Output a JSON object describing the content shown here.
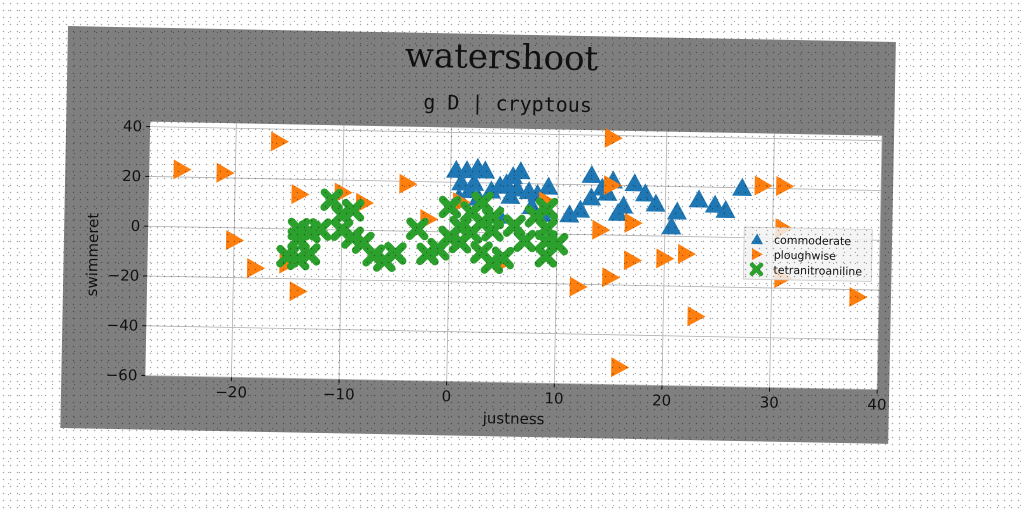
{
  "chart_data": {
    "type": "scatter",
    "title": "watershoot",
    "subtitle": "g D | cryptous",
    "xlabel": "justness",
    "ylabel": "swimmeret",
    "xlim": [
      -28,
      40
    ],
    "ylim": [
      -60,
      42
    ],
    "xticks": [
      "−20",
      "−10",
      "0",
      "10",
      "20",
      "30",
      "40"
    ],
    "yticks": [
      "−60",
      "−40",
      "−20",
      "0",
      "20",
      "40"
    ],
    "grid": true,
    "legend_position": "center-right",
    "colors": {
      "commoderate": "#1f77b4",
      "ploughwise": "#ff7f0e",
      "tetranitroaniline": "#2ca02c",
      "frame": "#7f7f7f"
    },
    "series": [
      {
        "name": "commoderate",
        "marker": "triangle-up",
        "points": [
          [
            0.5,
            25
          ],
          [
            1.5,
            25
          ],
          [
            2.5,
            26
          ],
          [
            3.2,
            25
          ],
          [
            1,
            20
          ],
          [
            2.2,
            20
          ],
          [
            1.8,
            17
          ],
          [
            3.8,
            17
          ],
          [
            0.8,
            14
          ],
          [
            2.6,
            14
          ],
          [
            4.6,
            19
          ],
          [
            5.8,
            23
          ],
          [
            6.5,
            25
          ],
          [
            5.2,
            20
          ],
          [
            6.2,
            18
          ],
          [
            7.3,
            17
          ],
          [
            8.1,
            16
          ],
          [
            9.1,
            19
          ],
          [
            5.6,
            15
          ],
          [
            4.6,
            7
          ],
          [
            7.6,
            11
          ],
          [
            8.6,
            8
          ],
          [
            11.1,
            8
          ],
          [
            12.1,
            10
          ],
          [
            13.1,
            15
          ],
          [
            14.1,
            19
          ],
          [
            15.1,
            22
          ],
          [
            13.1,
            24
          ],
          [
            14.6,
            17
          ],
          [
            16.1,
            12
          ],
          [
            17.1,
            21
          ],
          [
            18.1,
            17
          ],
          [
            19.1,
            13
          ],
          [
            21.1,
            10
          ],
          [
            23.1,
            15
          ],
          [
            24.6,
            13
          ],
          [
            25.6,
            11
          ],
          [
            27.1,
            20
          ],
          [
            15.6,
            9
          ],
          [
            20.6,
            4
          ]
        ]
      },
      {
        "name": "ploughwise",
        "marker": "triangle-right",
        "points": [
          [
            -25,
            23
          ],
          [
            -21,
            22
          ],
          [
            -16,
            35
          ],
          [
            -14,
            14
          ],
          [
            -10,
            15
          ],
          [
            -8,
            11
          ],
          [
            -4,
            19
          ],
          [
            -20,
            -5
          ],
          [
            -18,
            -16
          ],
          [
            -15,
            -14
          ],
          [
            -14,
            -25
          ],
          [
            -2,
            5
          ],
          [
            1,
            12
          ],
          [
            5,
            -12
          ],
          [
            9,
            13
          ],
          [
            15,
            20
          ],
          [
            14,
            2
          ],
          [
            17,
            5
          ],
          [
            15,
            39
          ],
          [
            12,
            -21
          ],
          [
            15,
            -17
          ],
          [
            17,
            -10
          ],
          [
            20,
            -9
          ],
          [
            22,
            -7
          ],
          [
            23,
            -32
          ],
          [
            29,
            21
          ],
          [
            31,
            21
          ],
          [
            31,
            4
          ],
          [
            31,
            -16
          ],
          [
            38,
            -23
          ],
          [
            16,
            -53
          ]
        ]
      },
      {
        "name": "tetranitroaniline",
        "marker": "x-thick",
        "points": [
          [
            -14,
            0
          ],
          [
            -13,
            -1
          ],
          [
            -12,
            0
          ],
          [
            -14,
            -4
          ],
          [
            -15,
            -11
          ],
          [
            -14,
            -12
          ],
          [
            -13,
            -10
          ],
          [
            -11,
            12
          ],
          [
            -10,
            6
          ],
          [
            -9,
            8
          ],
          [
            -10,
            0
          ],
          [
            -9,
            -3
          ],
          [
            -8,
            -5
          ],
          [
            -7,
            -10
          ],
          [
            -6,
            -12
          ],
          [
            -5,
            -9
          ],
          [
            -3,
            1
          ],
          [
            -2,
            -9
          ],
          [
            -1,
            -7
          ],
          [
            0,
            10
          ],
          [
            1,
            2
          ],
          [
            1,
            -4
          ],
          [
            2,
            8
          ],
          [
            3,
            12
          ],
          [
            3,
            4
          ],
          [
            4,
            6
          ],
          [
            4,
            1
          ],
          [
            3,
            -8
          ],
          [
            4,
            -12
          ],
          [
            5,
            -10
          ],
          [
            6,
            3
          ],
          [
            7,
            -3
          ],
          [
            8,
            7
          ],
          [
            9,
            10
          ],
          [
            9,
            2
          ],
          [
            9,
            -3
          ],
          [
            9,
            -9
          ],
          [
            10,
            -4
          ],
          [
            0,
            -2
          ],
          [
            2,
            0
          ]
        ]
      }
    ]
  }
}
